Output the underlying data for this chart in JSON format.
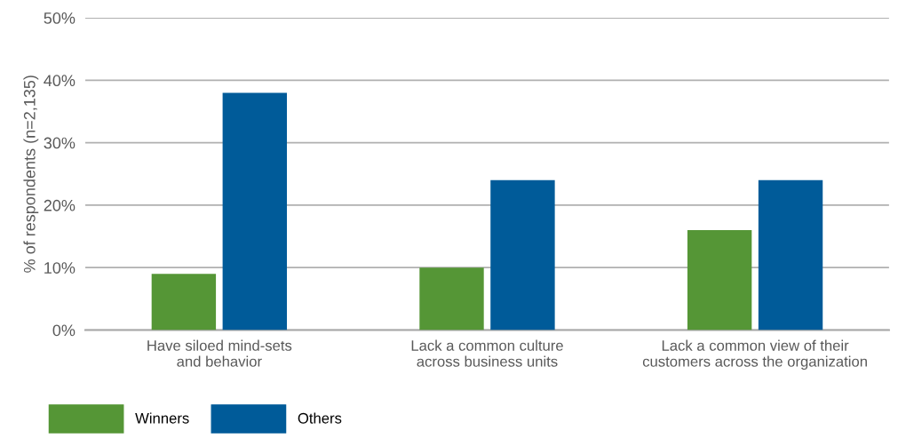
{
  "chart_data": {
    "type": "bar",
    "ylabel": "% of respondents (n=2,135)",
    "categories": [
      "Have siloed mind-sets\nand behavior",
      "Lack a common culture\nacross business units",
      "Lack a common view of their\ncustomers across the organization"
    ],
    "series": [
      {
        "name": "Winners",
        "color": "#559636",
        "values": [
          9,
          10,
          16
        ]
      },
      {
        "name": "Others",
        "color": "#005b99",
        "values": [
          38,
          24,
          24
        ]
      }
    ],
    "ylim": [
      0,
      50
    ],
    "yticks": [
      {
        "value": 0,
        "label": "0%"
      },
      {
        "value": 10,
        "label": "10%"
      },
      {
        "value": 20,
        "label": "20%"
      },
      {
        "value": 30,
        "label": "30%"
      },
      {
        "value": 40,
        "label": "40%"
      },
      {
        "value": 50,
        "label": "50%"
      }
    ],
    "grid": "y",
    "legend": "bottom left"
  }
}
